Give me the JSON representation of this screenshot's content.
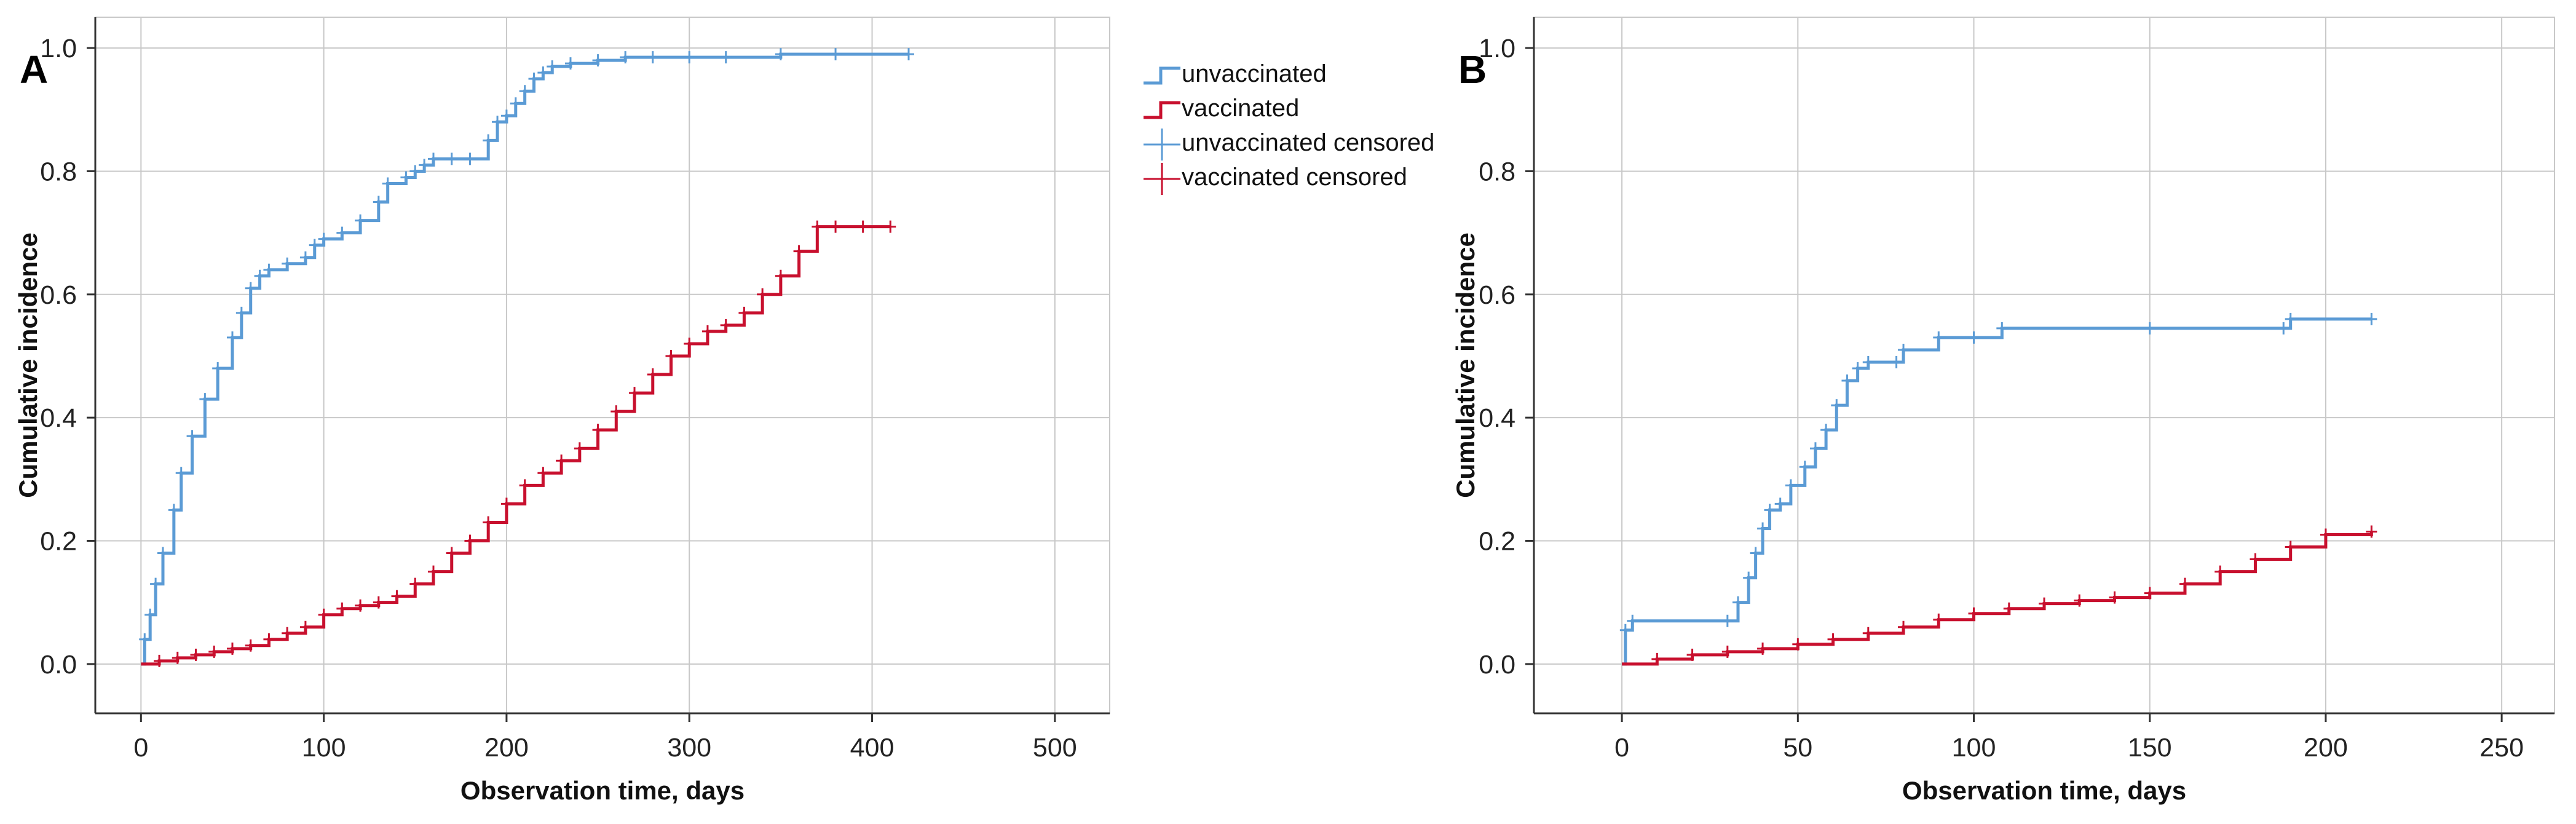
{
  "colors": {
    "unvaccinated": "#5b9bd5",
    "vaccinated": "#c8102e",
    "grid": "#c8c8c8",
    "axis": "#333333"
  },
  "legend": {
    "items": [
      {
        "label": "unvaccinated",
        "kind": "line",
        "series": "unvaccinated"
      },
      {
        "label": "vaccinated",
        "kind": "line",
        "series": "vaccinated"
      },
      {
        "label": "unvaccinated censored",
        "kind": "censor",
        "series": "unvaccinated"
      },
      {
        "label": "vaccinated censored",
        "kind": "censor",
        "series": "vaccinated"
      }
    ]
  },
  "chart_data": [
    {
      "panel_label": "A",
      "type": "line",
      "step": true,
      "xlabel": "Observation time, days",
      "ylabel": "Cumulative incidence",
      "xlim": [
        -25,
        530
      ],
      "ylim": [
        -0.08,
        1.05
      ],
      "xticks": [
        0,
        100,
        200,
        300,
        400,
        500
      ],
      "yticks": [
        0.0,
        0.2,
        0.4,
        0.6,
        0.8,
        1.0
      ],
      "xtick_labels": [
        "0",
        "100",
        "200",
        "300",
        "400",
        "500"
      ],
      "ytick_labels": [
        "0.0",
        "0.2",
        "0.4",
        "0.6",
        "0.8",
        "1.0"
      ],
      "grid": true,
      "series": [
        {
          "name": "unvaccinated",
          "x": [
            0,
            2,
            5,
            8,
            12,
            18,
            22,
            28,
            35,
            42,
            50,
            55,
            60,
            65,
            70,
            80,
            90,
            95,
            100,
            110,
            120,
            130,
            135,
            145,
            150,
            155,
            160,
            170,
            180,
            190,
            195,
            200,
            205,
            210,
            215,
            220,
            225,
            235,
            250,
            265,
            280,
            300,
            320,
            350,
            380,
            420
          ],
          "y": [
            0,
            0.04,
            0.08,
            0.13,
            0.18,
            0.25,
            0.31,
            0.37,
            0.43,
            0.48,
            0.53,
            0.57,
            0.61,
            0.63,
            0.64,
            0.65,
            0.66,
            0.68,
            0.69,
            0.7,
            0.72,
            0.75,
            0.78,
            0.79,
            0.8,
            0.81,
            0.82,
            0.82,
            0.82,
            0.85,
            0.88,
            0.89,
            0.91,
            0.93,
            0.95,
            0.96,
            0.97,
            0.975,
            0.98,
            0.985,
            0.985,
            0.985,
            0.985,
            0.99,
            0.99,
            0.99
          ]
        },
        {
          "name": "vaccinated",
          "x": [
            0,
            10,
            20,
            30,
            40,
            50,
            60,
            70,
            80,
            90,
            100,
            110,
            120,
            130,
            140,
            150,
            160,
            170,
            180,
            190,
            200,
            210,
            220,
            230,
            240,
            250,
            260,
            270,
            280,
            290,
            300,
            310,
            320,
            330,
            340,
            350,
            360,
            370,
            380,
            395,
            410
          ],
          "y": [
            0,
            0.005,
            0.01,
            0.015,
            0.02,
            0.025,
            0.03,
            0.04,
            0.05,
            0.06,
            0.08,
            0.09,
            0.095,
            0.1,
            0.11,
            0.13,
            0.15,
            0.18,
            0.2,
            0.23,
            0.26,
            0.29,
            0.31,
            0.33,
            0.35,
            0.38,
            0.41,
            0.44,
            0.47,
            0.5,
            0.52,
            0.54,
            0.55,
            0.57,
            0.6,
            0.63,
            0.67,
            0.71,
            0.71,
            0.71,
            0.71
          ]
        }
      ]
    },
    {
      "panel_label": "B",
      "type": "line",
      "step": true,
      "xlabel": "Observation time, days",
      "ylabel": "Cumulative incidence",
      "xlim": [
        -25,
        265
      ],
      "ylim": [
        -0.08,
        1.05
      ],
      "xticks": [
        0,
        50,
        100,
        150,
        200,
        250
      ],
      "yticks": [
        0.0,
        0.2,
        0.4,
        0.6,
        0.8,
        1.0
      ],
      "xtick_labels": [
        "0",
        "50",
        "100",
        "150",
        "200",
        "250"
      ],
      "ytick_labels": [
        "0.0",
        "0.2",
        "0.4",
        "0.6",
        "0.8",
        "1.0"
      ],
      "grid": true,
      "series": [
        {
          "name": "unvaccinated",
          "x": [
            0,
            1,
            3,
            30,
            33,
            36,
            38,
            40,
            42,
            45,
            48,
            52,
            55,
            58,
            61,
            64,
            67,
            70,
            78,
            80,
            90,
            100,
            108,
            150,
            188,
            190,
            213
          ],
          "y": [
            0,
            0.055,
            0.07,
            0.07,
            0.1,
            0.14,
            0.18,
            0.22,
            0.25,
            0.26,
            0.29,
            0.32,
            0.35,
            0.38,
            0.42,
            0.46,
            0.48,
            0.49,
            0.49,
            0.51,
            0.53,
            0.53,
            0.545,
            0.545,
            0.545,
            0.56,
            0.56
          ]
        },
        {
          "name": "vaccinated",
          "x": [
            0,
            10,
            20,
            30,
            40,
            50,
            60,
            70,
            80,
            90,
            100,
            110,
            120,
            130,
            140,
            150,
            160,
            170,
            180,
            190,
            200,
            213
          ],
          "y": [
            0,
            0.008,
            0.015,
            0.02,
            0.025,
            0.032,
            0.04,
            0.05,
            0.06,
            0.072,
            0.082,
            0.09,
            0.098,
            0.103,
            0.108,
            0.115,
            0.13,
            0.15,
            0.17,
            0.19,
            0.21,
            0.215
          ]
        }
      ]
    }
  ]
}
